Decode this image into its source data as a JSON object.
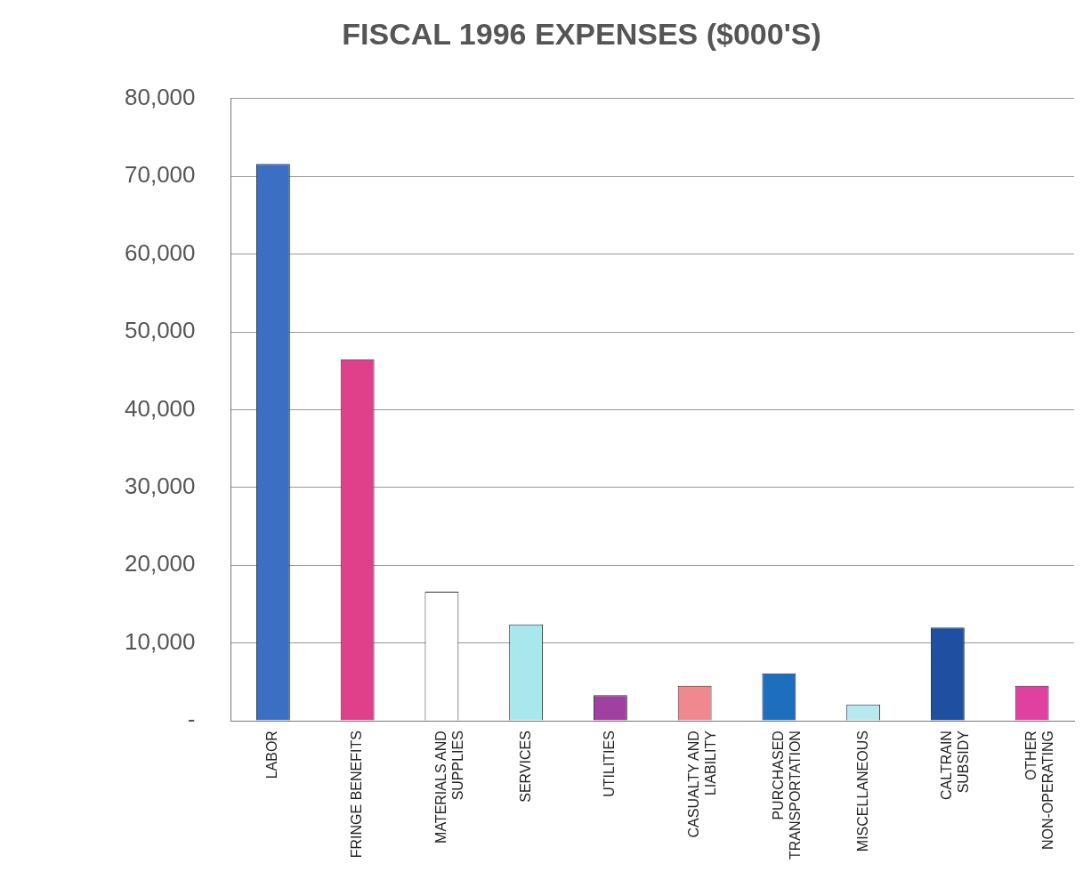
{
  "chart_data": {
    "type": "bar",
    "title": "FISCAL 1996 EXPENSES ($000'S)",
    "categories": [
      "LABOR",
      "FRINGE BENEFITS",
      "MATERIALS AND SUPPLIES",
      "SERVICES",
      "UTILITIES",
      "CASUALTY AND LIABILITY",
      "PURCHASED TRANSPORTATION",
      "MISCELLANEOUS",
      "CALTRAIN SUBSIDY",
      "OTHER NON-OPERATING"
    ],
    "values": [
      71600,
      46500,
      16600,
      12400,
      3300,
      4500,
      6100,
      2100,
      12000,
      4500
    ],
    "colors": [
      "#3a6fc4",
      "#e0408a",
      "#ffffff",
      "#a8e8ec",
      "#a040a0",
      "#f08890",
      "#1e6ec0",
      "#b8e8f0",
      "#1e4fa0",
      "#e040a0"
    ],
    "ylim": [
      0,
      80000
    ],
    "yticks": [
      {
        "value": 0,
        "label": "-"
      },
      {
        "value": 10000,
        "label": "10,000"
      },
      {
        "value": 20000,
        "label": "20,000"
      },
      {
        "value": 30000,
        "label": "30,000"
      },
      {
        "value": 40000,
        "label": "40,000"
      },
      {
        "value": 50000,
        "label": "50,000"
      },
      {
        "value": 60000,
        "label": "60,000"
      },
      {
        "value": 70000,
        "label": "70,000"
      },
      {
        "value": 80000,
        "label": "80,000"
      }
    ],
    "grid": "y",
    "legend": false
  }
}
